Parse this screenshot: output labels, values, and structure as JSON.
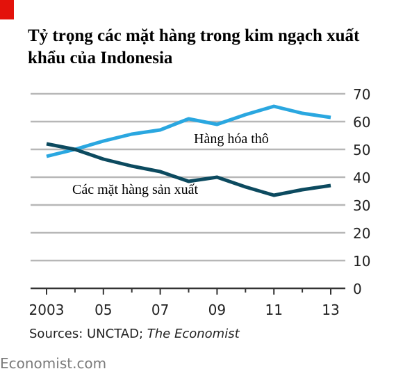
{
  "title": "Tỷ trọng các mặt hàng trong kim ngạch xuất khẩu của Indonesia",
  "source": {
    "prefix": "Sources: UNCTAD; ",
    "italic": "The Economist"
  },
  "brand": "Economist.com",
  "colors": {
    "accent": "#e3120b",
    "raw": "#2aa7e0",
    "manufactured": "#0c4a5f",
    "grid": "#b7b7b7",
    "axis": "#333333"
  },
  "chart_data": {
    "type": "line",
    "title": "Tỷ trọng các mặt hàng trong kim ngạch xuất khẩu của Indonesia",
    "x": [
      2003,
      2004,
      2005,
      2006,
      2007,
      2008,
      2009,
      2010,
      2011,
      2012,
      2013
    ],
    "x_tick_labels": [
      {
        "x": 2003,
        "label": "2003"
      },
      {
        "x": 2005,
        "label": "05"
      },
      {
        "x": 2007,
        "label": "07"
      },
      {
        "x": 2009,
        "label": "09"
      },
      {
        "x": 2011,
        "label": "11"
      },
      {
        "x": 2013,
        "label": "13"
      }
    ],
    "ylim": [
      0,
      70
    ],
    "y_ticks": [
      0,
      10,
      20,
      30,
      40,
      50,
      60,
      70
    ],
    "grid": true,
    "series": [
      {
        "name": "Hàng hóa thô",
        "color": "#2aa7e0",
        "values": [
          47.5,
          50,
          53,
          55.5,
          57,
          61,
          59,
          62.5,
          65.5,
          63,
          61.5
        ]
      },
      {
        "name": "Các mặt hàng sản xuất",
        "color": "#0c4a5f",
        "values": [
          52,
          50,
          46.5,
          44,
          42,
          38.5,
          40,
          36.5,
          33.5,
          35.5,
          37
        ]
      }
    ]
  }
}
